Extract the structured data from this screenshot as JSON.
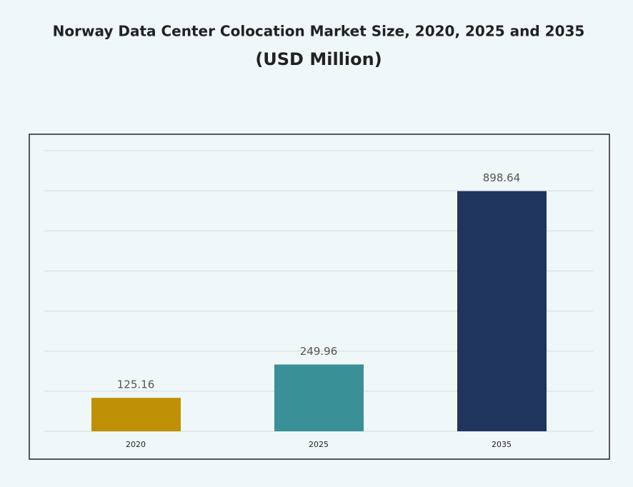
{
  "chart_data": {
    "type": "bar",
    "title": "Norway Data Center Colocation Market Size, 2020, 2025 and 2035",
    "subtitle": "(USD Million)",
    "categories": [
      "2020",
      "2025",
      "2035"
    ],
    "values": [
      125.16,
      249.96,
      898.64
    ],
    "colors": [
      "#bf9003",
      "#3a9097",
      "#1f355e"
    ],
    "ylim": [
      0,
      1050
    ],
    "grid": true
  }
}
